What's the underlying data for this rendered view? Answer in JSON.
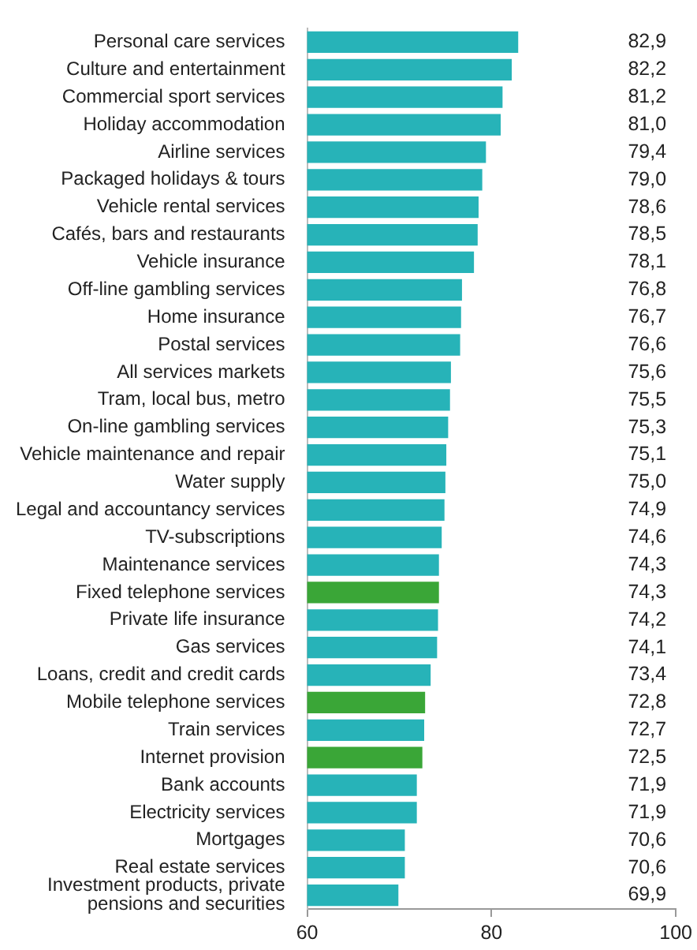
{
  "chart_data": {
    "type": "bar",
    "orientation": "horizontal",
    "categories": [
      "Personal care services",
      "Culture and entertainment",
      "Commercial sport services",
      "Holiday accommodation",
      "Airline services",
      "Packaged holidays & tours",
      "Vehicle rental services",
      "Cafés, bars and restaurants",
      "Vehicle insurance",
      "Off-line gambling services",
      "Home insurance",
      "Postal services",
      "All services markets",
      "Tram, local bus, metro",
      "On-line gambling services",
      "Vehicle maintenance and repair",
      "Water supply",
      "Legal and accountancy services",
      "TV-subscriptions",
      "Maintenance services",
      "Fixed telephone services",
      "Private life insurance",
      "Gas services",
      "Loans, credit and credit cards",
      "Mobile telephone services",
      "Train services",
      "Internet provision",
      "Bank accounts",
      "Electricity services",
      "Mortgages",
      "Real estate services",
      "Investment products, private pensions and securities"
    ],
    "values": [
      82.9,
      82.2,
      81.2,
      81.0,
      79.4,
      79.0,
      78.6,
      78.5,
      78.1,
      76.8,
      76.7,
      76.6,
      75.6,
      75.5,
      75.3,
      75.1,
      75.0,
      74.9,
      74.6,
      74.3,
      74.3,
      74.2,
      74.1,
      73.4,
      72.8,
      72.7,
      72.5,
      71.9,
      71.9,
      70.6,
      70.6,
      69.9
    ],
    "value_labels": [
      "82,9",
      "82,2",
      "81,2",
      "81,0",
      "79,4",
      "79,0",
      "78,6",
      "78,5",
      "78,1",
      "76,8",
      "76,7",
      "76,6",
      "75,6",
      "75,5",
      "75,3",
      "75,1",
      "75,0",
      "74,9",
      "74,6",
      "74,3",
      "74,3",
      "74,2",
      "74,1",
      "73,4",
      "72,8",
      "72,7",
      "72,5",
      "71,9",
      "71,9",
      "70,6",
      "70,6",
      "69,9"
    ],
    "colors": [
      "#27b3b8",
      "#27b3b8",
      "#27b3b8",
      "#27b3b8",
      "#27b3b8",
      "#27b3b8",
      "#27b3b8",
      "#27b3b8",
      "#27b3b8",
      "#27b3b8",
      "#27b3b8",
      "#27b3b8",
      "#27b3b8",
      "#27b3b8",
      "#27b3b8",
      "#27b3b8",
      "#27b3b8",
      "#27b3b8",
      "#27b3b8",
      "#27b3b8",
      "#3aa637",
      "#27b3b8",
      "#27b3b8",
      "#27b3b8",
      "#3aa637",
      "#27b3b8",
      "#3aa637",
      "#27b3b8",
      "#27b3b8",
      "#27b3b8",
      "#27b3b8",
      "#27b3b8"
    ],
    "xlim": [
      60,
      100
    ],
    "xticks": [
      60,
      80,
      100
    ],
    "legend": false
  }
}
